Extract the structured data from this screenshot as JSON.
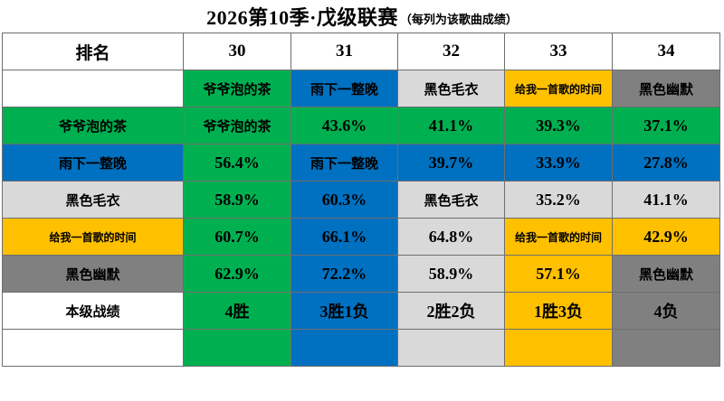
{
  "title": {
    "main": "2026第10季·戊级联赛",
    "sub": "（每列为该歌曲成绩）"
  },
  "colors": {
    "green": "#00B050",
    "blue": "#0070C0",
    "light_gray": "#D9D9D9",
    "gold": "#FFC000",
    "dark_gray": "#808080",
    "white": "#FFFFFF"
  },
  "songs": [
    {
      "name": "爷爷泡的茶",
      "color": "green",
      "column": "30",
      "record": "4胜"
    },
    {
      "name": "雨下一整晚",
      "color": "blue",
      "column": "31",
      "record": "3胜1负"
    },
    {
      "name": "黑色毛衣",
      "color": "light_gray",
      "column": "32",
      "record": "2胜2负"
    },
    {
      "name": "给我一首歌的时间",
      "color": "gold",
      "column": "33",
      "record": "1胜3负"
    },
    {
      "name": "黑色幽默",
      "color": "dark_gray",
      "column": "34",
      "record": "4负"
    }
  ],
  "table": {
    "header": {
      "rank": "排名",
      "cols": [
        "30",
        "31",
        "32",
        "33",
        "34"
      ]
    },
    "rows": [
      {
        "name": "song-name-header-row",
        "cells": [
          {
            "t": "",
            "bg": "white"
          },
          {
            "t": "爷爷泡的茶",
            "bg": "green"
          },
          {
            "t": "雨下一整晚",
            "bg": "blue"
          },
          {
            "t": "黑色毛衣",
            "bg": "light_gray"
          },
          {
            "t": "给我一首歌的时间",
            "bg": "gold"
          },
          {
            "t": "黑色幽默",
            "bg": "dark_gray"
          }
        ]
      },
      {
        "name": "row-yeye-pao-de-cha",
        "cells": [
          {
            "t": "爷爷泡的茶",
            "bg": "green"
          },
          {
            "t": "爷爷泡的茶",
            "bg": "green"
          },
          {
            "t": "43.6%",
            "bg": "green"
          },
          {
            "t": "41.1%",
            "bg": "green"
          },
          {
            "t": "39.3%",
            "bg": "green"
          },
          {
            "t": "37.1%",
            "bg": "green"
          }
        ]
      },
      {
        "name": "row-yu-xia-yi-zheng-wan",
        "cells": [
          {
            "t": "雨下一整晚",
            "bg": "blue"
          },
          {
            "t": "56.4%",
            "bg": "green"
          },
          {
            "t": "雨下一整晚",
            "bg": "blue"
          },
          {
            "t": "39.7%",
            "bg": "blue"
          },
          {
            "t": "33.9%",
            "bg": "blue"
          },
          {
            "t": "27.8%",
            "bg": "blue"
          }
        ]
      },
      {
        "name": "row-hei-se-mao-yi",
        "cells": [
          {
            "t": "黑色毛衣",
            "bg": "light_gray"
          },
          {
            "t": "58.9%",
            "bg": "green"
          },
          {
            "t": "60.3%",
            "bg": "blue"
          },
          {
            "t": "黑色毛衣",
            "bg": "light_gray"
          },
          {
            "t": "35.2%",
            "bg": "light_gray"
          },
          {
            "t": "41.1%",
            "bg": "light_gray"
          }
        ]
      },
      {
        "name": "row-gei-wo-yi-shou-ge-de-shi-jian",
        "cells": [
          {
            "t": "给我一首歌的时间",
            "bg": "gold"
          },
          {
            "t": "60.7%",
            "bg": "green"
          },
          {
            "t": "66.1%",
            "bg": "blue"
          },
          {
            "t": "64.8%",
            "bg": "light_gray"
          },
          {
            "t": "给我一首歌的时间",
            "bg": "gold"
          },
          {
            "t": "42.9%",
            "bg": "gold"
          }
        ]
      },
      {
        "name": "row-hei-se-you-mo",
        "cells": [
          {
            "t": "黑色幽默",
            "bg": "dark_gray"
          },
          {
            "t": "62.9%",
            "bg": "green"
          },
          {
            "t": "72.2%",
            "bg": "blue"
          },
          {
            "t": "58.9%",
            "bg": "light_gray"
          },
          {
            "t": "57.1%",
            "bg": "gold"
          },
          {
            "t": "黑色幽默",
            "bg": "dark_gray"
          }
        ]
      },
      {
        "name": "row-level-record",
        "cells": [
          {
            "t": "本级战绩",
            "bg": "white"
          },
          {
            "t": "4胜",
            "bg": "green"
          },
          {
            "t": "3胜1负",
            "bg": "blue"
          },
          {
            "t": "2胜2负",
            "bg": "light_gray"
          },
          {
            "t": "1胜3负",
            "bg": "gold"
          },
          {
            "t": "4负",
            "bg": "dark_gray"
          }
        ]
      },
      {
        "name": "row-empty-color-strip",
        "cells": [
          {
            "t": "",
            "bg": "white"
          },
          {
            "t": "",
            "bg": "green"
          },
          {
            "t": "",
            "bg": "blue"
          },
          {
            "t": "",
            "bg": "light_gray"
          },
          {
            "t": "",
            "bg": "gold"
          },
          {
            "t": "",
            "bg": "dark_gray"
          }
        ]
      }
    ]
  }
}
